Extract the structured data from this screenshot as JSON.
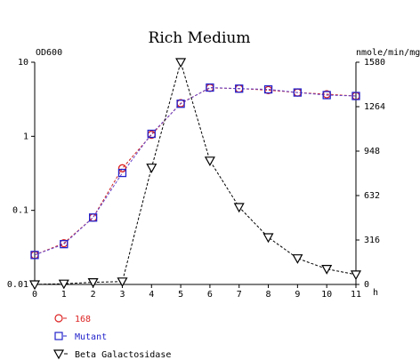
{
  "colors": {
    "wt": "#dd2222",
    "mutant": "#2222cc",
    "beta": "#000000",
    "wt_line": "#cc2222",
    "mutant_line": "#6644cc"
  },
  "chart_data": {
    "type": "line",
    "title": "Rich Medium",
    "xlabel": "h",
    "ylabel_left": "OD600",
    "ylabel_right": "nmole/min/mg",
    "left_axis": {
      "scale": "log",
      "ylim": [
        0.01,
        10
      ],
      "ticks": [
        0.01,
        0.1,
        1,
        10
      ],
      "tick_labels": [
        "0.01",
        "0.1",
        "1",
        "10"
      ]
    },
    "right_axis": {
      "scale": "linear",
      "ylim": [
        0,
        1580
      ],
      "ticks": [
        0,
        316,
        632,
        948,
        1264,
        1580
      ],
      "tick_labels": [
        "0",
        "316",
        "632",
        "948",
        "1264",
        "1580"
      ]
    },
    "x_axis": {
      "xlim": [
        0,
        11
      ],
      "ticks": [
        0,
        1,
        2,
        3,
        4,
        5,
        6,
        7,
        8,
        9,
        10,
        11
      ],
      "tick_labels": [
        "0",
        "1",
        "2",
        "3",
        "4",
        "5",
        "6",
        "7",
        "8",
        "9",
        "10",
        "11"
      ]
    },
    "x": [
      0,
      1,
      2,
      3,
      4,
      5,
      6,
      7,
      8,
      9,
      10,
      11
    ],
    "series": [
      {
        "name": "168",
        "axis": "left",
        "marker": "circle",
        "values": [
          0.025,
          0.036,
          0.08,
          0.37,
          1.05,
          2.8,
          4.5,
          4.4,
          4.2,
          3.9,
          3.7,
          3.5
        ]
      },
      {
        "name": "Mutant",
        "axis": "left",
        "marker": "square",
        "values": [
          0.025,
          0.035,
          0.08,
          0.32,
          1.08,
          2.75,
          4.55,
          4.4,
          4.3,
          3.9,
          3.6,
          3.5
        ]
      },
      {
        "name": "Beta Galactosidase",
        "axis": "right",
        "marker": "triangle-down",
        "values": [
          0,
          5,
          15,
          20,
          830,
          1580,
          880,
          550,
          335,
          185,
          110,
          70
        ]
      }
    ],
    "legend": {
      "position": "bottom-left"
    },
    "grid": false
  }
}
